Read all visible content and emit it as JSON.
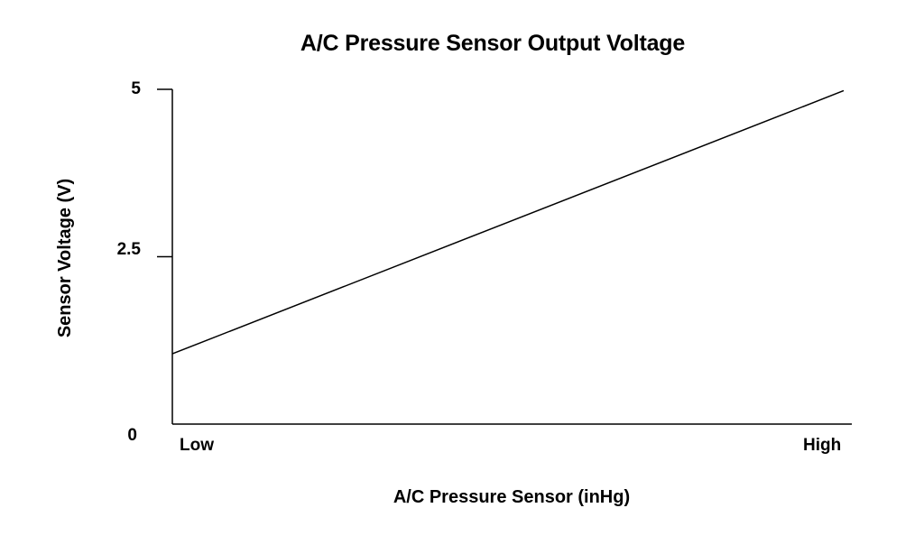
{
  "chart_data": {
    "type": "line",
    "title": "A/C Pressure Sensor Output Voltage",
    "xlabel": "A/C Pressure Sensor (inHg)",
    "ylabel": "Sensor Voltage (V)",
    "x_tick_labels": [
      "Low",
      "High"
    ],
    "y_ticks": [
      {
        "label": "5",
        "value": 5
      },
      {
        "label": "2.5",
        "value": 2.5
      },
      {
        "label": "0",
        "value": 0
      }
    ],
    "ylim": [
      0,
      5
    ],
    "xlim": [
      0,
      1
    ],
    "grid": false,
    "series": [
      {
        "x": [
          0,
          1
        ],
        "y": [
          1.05,
          4.98
        ]
      }
    ],
    "colors": {
      "line": "#000000",
      "axis": "#000000"
    }
  }
}
